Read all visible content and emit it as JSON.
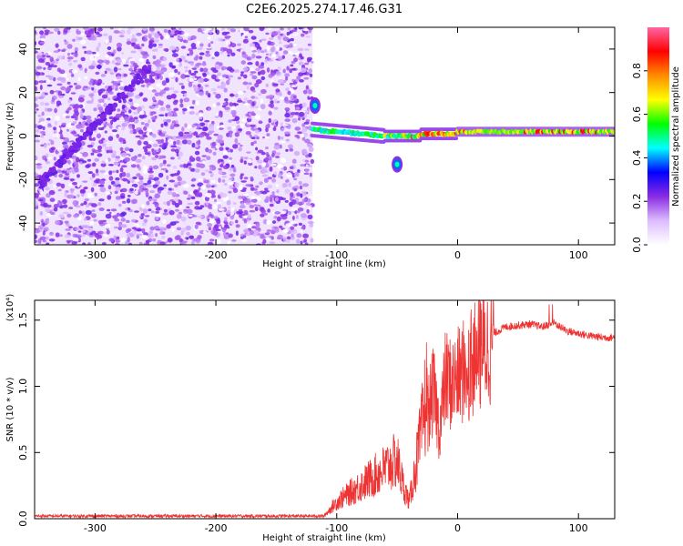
{
  "title": "C2E6.2025.274.17.46.G31",
  "chart_data": [
    {
      "type": "heatmap",
      "xlabel": "Height of straight line (km)",
      "ylabel": "Frequency (Hz)",
      "xlim": [
        -350,
        130
      ],
      "ylim": [
        -50,
        50
      ],
      "x_ticks": [
        -300,
        -200,
        -100,
        0,
        100
      ],
      "x_tick_labels": [
        "-300",
        "-200",
        "-100",
        "0",
        "100"
      ],
      "y_ticks": [
        -40,
        -20,
        0,
        20,
        40
      ],
      "y_tick_labels": [
        "-40",
        "-20",
        "0",
        "20",
        "40"
      ],
      "noise_region_end_x": -120,
      "annotations": [
        {
          "label": "main-track",
          "x_start": -120,
          "x_end": 130,
          "freq_start": 2,
          "freq_end": 2
        },
        {
          "label": "left-streak",
          "x_start": -345,
          "x_end": -255,
          "freq_start": -22,
          "freq_end": 32
        },
        {
          "label": "blob-upper",
          "x": -118,
          "freq": 14
        },
        {
          "label": "blob-lower",
          "x": -50,
          "freq": -13
        }
      ],
      "colorbar": {
        "label": "Normalized spectral amplitude",
        "range": [
          0,
          1
        ],
        "ticks": [
          0.0,
          0.2,
          0.4,
          0.6,
          0.8
        ],
        "tick_labels": [
          "0.0",
          "0.2",
          "0.4",
          "0.6",
          "0.8"
        ],
        "colors": [
          "#ffffff",
          "#dcbcff",
          "#8a2be2",
          "#0000ff",
          "#00ffff",
          "#00ff00",
          "#ffff00",
          "#ff8c00",
          "#ff0000",
          "#ff66a3"
        ]
      }
    },
    {
      "type": "line",
      "xlabel": "Height of straight line (km)",
      "ylabel": "SNR (10 * v/v)",
      "scale_label": "(x10⁴)",
      "xlim": [
        -350,
        130
      ],
      "ylim": [
        0,
        1.65
      ],
      "x_ticks": [
        -300,
        -200,
        -100,
        0,
        100
      ],
      "x_tick_labels": [
        "-300",
        "-200",
        "-100",
        "0",
        "100"
      ],
      "y_ticks": [
        0.0,
        0.5,
        1.0,
        1.5
      ],
      "y_tick_labels": [
        "0.0",
        "0.5",
        "1.0",
        "1.5"
      ],
      "color": "#ee3333",
      "series": [
        {
          "name": "SNR",
          "x": [
            -350,
            -300,
            -250,
            -200,
            -150,
            -110,
            -100,
            -90,
            -80,
            -70,
            -60,
            -50,
            -45,
            -40,
            -35,
            -30,
            -25,
            -20,
            -15,
            -10,
            -5,
            0,
            5,
            10,
            15,
            20,
            25,
            30,
            40,
            50,
            60,
            70,
            80,
            90,
            100,
            110,
            120,
            130
          ],
          "values": [
            0.02,
            0.02,
            0.02,
            0.02,
            0.02,
            0.02,
            0.1,
            0.15,
            0.2,
            0.25,
            0.3,
            0.35,
            0.2,
            0.1,
            0.3,
            0.5,
            0.8,
            1.0,
            0.7,
            1.1,
            1.05,
            1.1,
            1.15,
            1.2,
            1.25,
            1.3,
            1.35,
            1.4,
            1.45,
            1.46,
            1.47,
            1.45,
            1.48,
            1.42,
            1.4,
            1.38,
            1.37,
            1.37
          ]
        }
      ]
    }
  ]
}
